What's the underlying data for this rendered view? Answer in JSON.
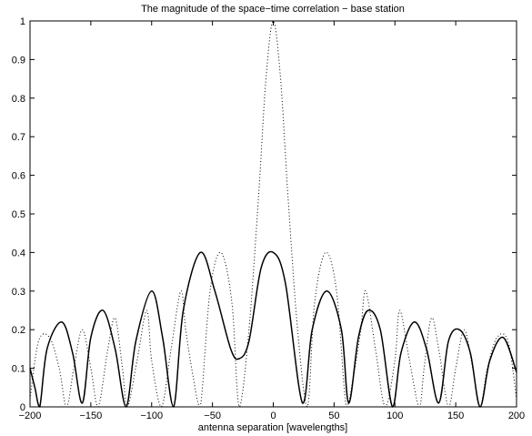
{
  "chart_data": {
    "type": "line",
    "title": "The magnitude of the space−time correlation − base station",
    "xlabel": "antenna separation [wavelengths]",
    "ylabel": "",
    "xlim": [
      -200,
      200
    ],
    "ylim": [
      0,
      1
    ],
    "x_ticks": [
      -200,
      -150,
      -100,
      -50,
      0,
      50,
      100,
      150,
      200
    ],
    "x_tick_labels": [
      "−200",
      "−150",
      "−100",
      "−50",
      "0",
      "50",
      "100",
      "150",
      "200"
    ],
    "y_ticks": [
      0,
      0.1,
      0.2,
      0.3,
      0.4,
      0.5,
      0.6,
      0.7,
      0.8,
      0.9,
      1
    ],
    "y_tick_labels": [
      "0",
      "0.1",
      "0.2",
      "0.3",
      "0.4",
      "0.5",
      "0.6",
      "0.7",
      "0.8",
      "0.9",
      "1"
    ],
    "grid": false,
    "series": [
      {
        "style": "solid",
        "color": "#000000",
        "x": [
          -200,
          -196,
          -192,
          -186,
          -174,
          -165,
          -157,
          -150,
          -140,
          -130,
          -121,
          -113,
          -100,
          -91,
          -82,
          -74,
          -60,
          -48,
          -35,
          -28,
          -20,
          -10,
          0,
          10,
          24,
          32,
          44,
          56,
          62,
          70,
          78,
          88,
          98,
          105,
          116,
          126,
          136,
          144,
          153,
          162,
          170,
          178,
          189,
          200
        ],
        "y": [
          0.1,
          0.05,
          0.0,
          0.15,
          0.22,
          0.14,
          0.01,
          0.18,
          0.25,
          0.15,
          0.0,
          0.17,
          0.3,
          0.18,
          0.0,
          0.25,
          0.4,
          0.3,
          0.15,
          0.125,
          0.17,
          0.36,
          0.4,
          0.32,
          0.01,
          0.2,
          0.3,
          0.2,
          0.01,
          0.18,
          0.25,
          0.2,
          0.0,
          0.14,
          0.22,
          0.15,
          0.01,
          0.17,
          0.2,
          0.14,
          0.0,
          0.12,
          0.18,
          0.09
        ]
      },
      {
        "style": "dotted",
        "color": "#000000",
        "x": [
          -200,
          -193,
          -184,
          -176,
          -170,
          -164,
          -157,
          -150,
          -144,
          -136,
          -130,
          -124,
          -120,
          -112,
          -104,
          -100,
          -92,
          -84,
          -76,
          -72,
          -66,
          -60,
          -52,
          -43,
          -34,
          -28,
          -20,
          -12,
          -6,
          0,
          6,
          12,
          20,
          28,
          34,
          43,
          52,
          60,
          66,
          72,
          76,
          84,
          92,
          100,
          104,
          112,
          120,
          124,
          130,
          136,
          144,
          150,
          157,
          164,
          170,
          176,
          184,
          193,
          200
        ],
        "y": [
          0.02,
          0.17,
          0.18,
          0.1,
          0.0,
          0.1,
          0.2,
          0.1,
          0.0,
          0.15,
          0.23,
          0.1,
          0.0,
          0.12,
          0.25,
          0.12,
          0.0,
          0.15,
          0.3,
          0.2,
          0.08,
          0.0,
          0.3,
          0.4,
          0.27,
          0.0,
          0.2,
          0.55,
          0.85,
          1.0,
          0.85,
          0.55,
          0.2,
          0.0,
          0.27,
          0.4,
          0.3,
          0.0,
          0.08,
          0.2,
          0.3,
          0.15,
          0.0,
          0.12,
          0.25,
          0.12,
          0.0,
          0.1,
          0.23,
          0.15,
          0.0,
          0.1,
          0.2,
          0.1,
          0.0,
          0.1,
          0.18,
          0.17,
          0.02
        ]
      }
    ]
  }
}
